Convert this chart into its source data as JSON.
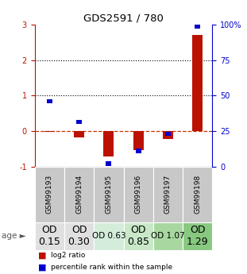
{
  "title": "GDS2591 / 780",
  "samples": [
    "GSM99193",
    "GSM99194",
    "GSM99195",
    "GSM99196",
    "GSM99197",
    "GSM99198"
  ],
  "log2_ratio": [
    -0.03,
    -0.18,
    -0.72,
    -0.55,
    -0.22,
    2.72
  ],
  "percentile_rank_left": [
    0.84,
    0.26,
    -0.92,
    -0.56,
    -0.08,
    2.96
  ],
  "od_labels": [
    "OD\n0.15",
    "OD\n0.30",
    "OD 0.63",
    "OD\n0.85",
    "OD 1.07",
    "OD\n1.29"
  ],
  "od_bg_colors": [
    "#e0e0e0",
    "#e0e0e0",
    "#d4edda",
    "#c8e8c8",
    "#a8d8a0",
    "#88c880"
  ],
  "od_font_sizes": [
    9,
    9,
    7.5,
    9,
    7.5,
    9
  ],
  "bar_color_red": "#bb1100",
  "bar_color_blue": "#0000cc",
  "ylim_left": [
    -1,
    3
  ],
  "ylim_right": [
    0,
    100
  ],
  "yticks_left": [
    -1,
    0,
    1,
    2,
    3
  ],
  "ytick_labels_left": [
    "-1",
    "0",
    "1",
    "2",
    "3"
  ],
  "yticks_right": [
    0,
    25,
    50,
    75,
    100
  ],
  "ytick_labels_right": [
    "0",
    "25",
    "50",
    "75",
    "100%"
  ],
  "hline_0_style": "--",
  "hline_0_color": "#cc3300",
  "hline_1_color": "black",
  "hline_2_color": "black",
  "legend_labels": [
    "log2 ratio",
    "percentile rank within the sample"
  ],
  "sample_area_color": "#c8c8c8",
  "background_color": "#ffffff"
}
